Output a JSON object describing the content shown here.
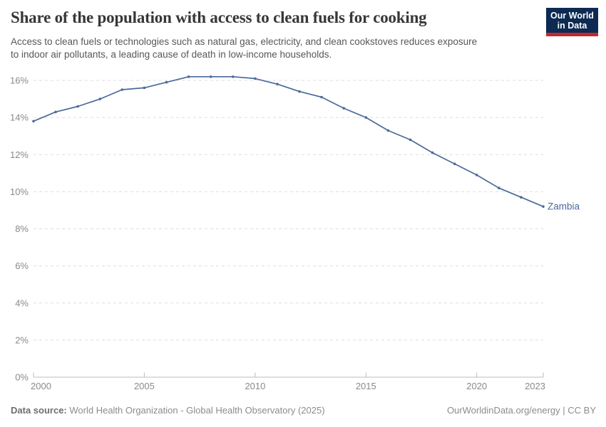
{
  "header": {
    "title": "Share of the population with access to clean fuels for cooking",
    "subtitle_lines": [
      "Access to clean fuels or technologies such as natural gas, electricity, and clean cookstoves reduces exposure",
      "to indoor air pollutants, a leading cause of death in low-income households."
    ],
    "logo": {
      "line1": "Our World",
      "line2": "in Data",
      "bg": "#0D2A52",
      "stripe": "#C0292E"
    }
  },
  "chart_data": {
    "type": "line",
    "title": "Share of the population with access to clean fuels for cooking",
    "x": [
      2000,
      2001,
      2002,
      2003,
      2004,
      2005,
      2006,
      2007,
      2008,
      2009,
      2010,
      2011,
      2012,
      2013,
      2014,
      2015,
      2016,
      2017,
      2018,
      2019,
      2020,
      2021,
      2022,
      2023
    ],
    "series": [
      {
        "name": "Zambia",
        "color": "#4C6A9C",
        "values": [
          13.8,
          14.3,
          14.6,
          15.0,
          15.5,
          15.6,
          15.9,
          16.2,
          16.2,
          16.2,
          16.1,
          15.8,
          15.4,
          15.1,
          14.5,
          14.0,
          13.3,
          12.8,
          12.1,
          11.5,
          10.9,
          10.2,
          9.7,
          9.2
        ]
      }
    ],
    "ylim": [
      0,
      16
    ],
    "yticks": [
      0,
      2,
      4,
      6,
      8,
      10,
      12,
      14,
      16
    ],
    "ytick_suffix": "%",
    "xticks": [
      2000,
      2005,
      2010,
      2015,
      2020,
      2023
    ],
    "grid": "horizontal-dashed",
    "grid_color": "#dedede",
    "axis_color": "#bdbdbd",
    "tick_label_color": "#8a8a8a",
    "legend": "line-end-label"
  },
  "footer": {
    "datasource_label": "Data source:",
    "datasource_text": "World Health Organization - Global Health Observatory (2025)",
    "rights": "OurWorldinData.org/energy | CC BY"
  }
}
